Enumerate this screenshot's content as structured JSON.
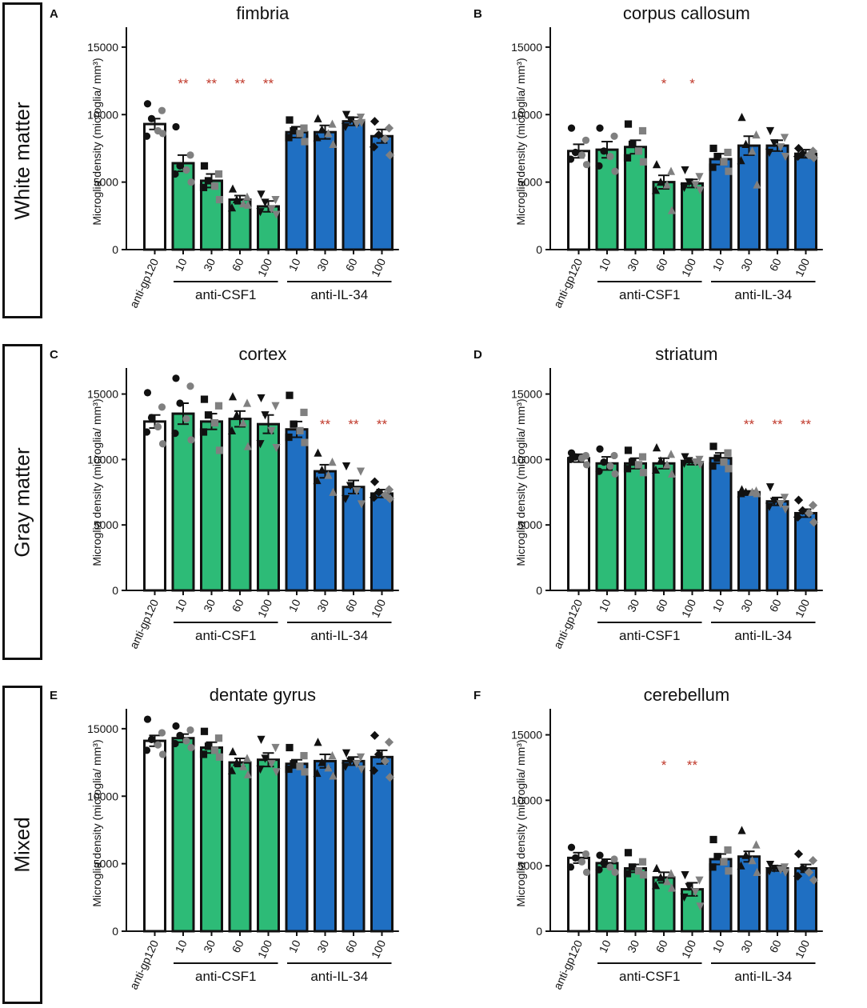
{
  "row_labels": [
    "White matter",
    "Gray matter",
    "Mixed"
  ],
  "colors": {
    "control": "#ffffff",
    "anti_csf1": "#2dbb77",
    "anti_il34": "#1f6fc2",
    "sig": "#c0392b",
    "dark_point": "#111111",
    "gray_point": "#808080"
  },
  "chart_data": [
    {
      "type": "bar",
      "panel": "A",
      "title": "fimbria",
      "ylabel": "Microglia density (microglia/ mm³)",
      "ylim": [
        0,
        16000
      ],
      "yticks": [
        0,
        5000,
        10000,
        15000
      ],
      "categories": [
        "anti-gp120",
        "10",
        "30",
        "60",
        "100",
        "10",
        "30",
        "60",
        "100"
      ],
      "groups": [
        {
          "label": "anti-CSF1",
          "from": 1,
          "to": 4
        },
        {
          "label": "anti-IL-34",
          "from": 5,
          "to": 8
        }
      ],
      "values": [
        9300,
        6400,
        5100,
        3700,
        3200,
        8700,
        8700,
        9500,
        8400
      ],
      "errors": [
        400,
        600,
        500,
        300,
        400,
        400,
        500,
        300,
        500
      ],
      "significance": [
        "",
        "**",
        "**",
        "**",
        "**",
        "",
        "",
        "",
        ""
      ],
      "points": [
        [
          10800,
          10300,
          9700,
          8800,
          8400,
          8600
        ],
        [
          9100,
          7000,
          6200,
          5900,
          5600,
          5000
        ],
        [
          6200,
          5600,
          5100,
          4700,
          4600,
          3700
        ],
        [
          4500,
          3900,
          3700,
          3400,
          3100,
          3300
        ],
        [
          4100,
          3700,
          3500,
          3000,
          2800,
          2600
        ],
        [
          9600,
          9000,
          8800,
          8600,
          8300,
          8000
        ],
        [
          9700,
          9300,
          8900,
          8600,
          8300,
          7800
        ],
        [
          10000,
          9800,
          9600,
          9300,
          9100,
          9400
        ],
        [
          9500,
          9000,
          8500,
          8200,
          7600,
          7000
        ]
      ]
    },
    {
      "type": "bar",
      "panel": "B",
      "title": "corpus callosum",
      "ylabel": "Microglia density (microglia/ mm³)",
      "ylim": [
        0,
        16000
      ],
      "yticks": [
        0,
        5000,
        10000,
        15000
      ],
      "categories": [
        "anti-gp120",
        "10",
        "30",
        "60",
        "100",
        "10",
        "30",
        "60",
        "100"
      ],
      "groups": [
        {
          "label": "anti-CSF1",
          "from": 1,
          "to": 4
        },
        {
          "label": "anti-IL-34",
          "from": 5,
          "to": 8
        }
      ],
      "values": [
        7300,
        7400,
        7600,
        5000,
        4900,
        6700,
        7700,
        7700,
        7100
      ],
      "errors": [
        500,
        600,
        500,
        500,
        300,
        400,
        700,
        400,
        300
      ],
      "significance": [
        "",
        "",
        "",
        "*",
        "*",
        "",
        "",
        "",
        ""
      ],
      "points": [
        [
          9000,
          8100,
          7200,
          7000,
          6700,
          6300
        ],
        [
          9000,
          8400,
          7300,
          6900,
          6200,
          5800
        ],
        [
          9300,
          8800,
          7800,
          7300,
          6800,
          6500
        ],
        [
          6300,
          5800,
          5000,
          4800,
          4400,
          2900
        ],
        [
          5900,
          5400,
          5000,
          4800,
          4600,
          4400
        ],
        [
          7500,
          7200,
          6900,
          6500,
          6100,
          5800
        ],
        [
          9800,
          8500,
          7800,
          7300,
          6600,
          4800
        ],
        [
          8800,
          8300,
          7900,
          7600,
          7200,
          6900
        ],
        [
          7500,
          7300,
          7100,
          7000,
          6900,
          6800
        ]
      ]
    },
    {
      "type": "bar",
      "panel": "C",
      "title": "cortex",
      "ylabel": "Microglia density (microglia/ mm³)",
      "ylim": [
        0,
        16500
      ],
      "yticks": [
        0,
        5000,
        10000,
        15000
      ],
      "categories": [
        "anti-gp120",
        "10",
        "30",
        "60",
        "100",
        "10",
        "30",
        "60",
        "100"
      ],
      "groups": [
        {
          "label": "anti-CSF1",
          "from": 1,
          "to": 4
        },
        {
          "label": "anti-IL-34",
          "from": 5,
          "to": 8
        }
      ],
      "values": [
        12900,
        13500,
        12900,
        13100,
        12700,
        12300,
        9100,
        7900,
        7400
      ],
      "errors": [
        500,
        800,
        600,
        600,
        700,
        600,
        500,
        500,
        300
      ],
      "significance": [
        "",
        "",
        "",
        "",
        "",
        "",
        "**",
        "**",
        "**"
      ],
      "points": [
        [
          15100,
          14000,
          13200,
          12500,
          12100,
          11200
        ],
        [
          16200,
          15600,
          14300,
          13100,
          12000,
          11500
        ],
        [
          14600,
          14100,
          13400,
          12800,
          12100,
          10700
        ],
        [
          14800,
          14300,
          13400,
          12800,
          12200,
          11000
        ],
        [
          14700,
          14100,
          13400,
          12200,
          11200,
          10900
        ],
        [
          14900,
          13600,
          12700,
          12200,
          11700,
          11300
        ],
        [
          10500,
          9800,
          9200,
          8800,
          8400,
          7500
        ],
        [
          9500,
          9100,
          8000,
          7600,
          7000,
          6600
        ],
        [
          8300,
          7700,
          7500,
          7300,
          7100,
          7000
        ]
      ]
    },
    {
      "type": "bar",
      "panel": "D",
      "title": "striatum",
      "ylabel": "Microglia density (microglia/ mm³)",
      "ylim": [
        0,
        16500
      ],
      "yticks": [
        0,
        5000,
        10000,
        15000
      ],
      "categories": [
        "anti-gp120",
        "10",
        "30",
        "60",
        "100",
        "10",
        "30",
        "60",
        "100"
      ],
      "groups": [
        {
          "label": "anti-CSF1",
          "from": 1,
          "to": 4
        },
        {
          "label": "anti-IL-34",
          "from": 5,
          "to": 8
        }
      ],
      "values": [
        10100,
        9700,
        9700,
        9700,
        9800,
        10100,
        7500,
        6800,
        5900
      ],
      "errors": [
        300,
        500,
        400,
        400,
        200,
        400,
        100,
        300,
        300
      ],
      "significance": [
        "",
        "",
        "",
        "",
        "",
        "",
        "**",
        "**",
        "**"
      ],
      "points": [
        [
          10500,
          10300,
          10200,
          10100,
          10000,
          9600
        ],
        [
          10800,
          10300,
          9800,
          9500,
          9100,
          8900
        ],
        [
          10700,
          10200,
          9800,
          9600,
          9300,
          9000
        ],
        [
          10900,
          10400,
          9900,
          9600,
          9200,
          8900
        ],
        [
          10200,
          10000,
          9900,
          9800,
          9700,
          9600
        ],
        [
          11000,
          10500,
          10100,
          9800,
          9500,
          9300
        ],
        [
          7700,
          7600,
          7500,
          7500,
          7400,
          7400
        ],
        [
          7900,
          7100,
          6800,
          6600,
          6400,
          6200
        ],
        [
          6900,
          6500,
          6100,
          5900,
          5600,
          5200
        ]
      ]
    },
    {
      "type": "bar",
      "panel": "E",
      "title": "dentate gyrus",
      "ylabel": "Microglia density (microglia/ mm³)",
      "ylim": [
        0,
        16000
      ],
      "yticks": [
        0,
        5000,
        10000,
        15000
      ],
      "categories": [
        "anti-gp120",
        "10",
        "30",
        "60",
        "100",
        "10",
        "30",
        "60",
        "100"
      ],
      "groups": [
        {
          "label": "anti-CSF1",
          "from": 1,
          "to": 4
        },
        {
          "label": "anti-IL-34",
          "from": 5,
          "to": 8
        }
      ],
      "values": [
        14100,
        14300,
        13600,
        12500,
        12700,
        12400,
        12600,
        12600,
        12900
      ],
      "errors": [
        400,
        300,
        400,
        300,
        500,
        300,
        500,
        300,
        500
      ],
      "significance": [
        "",
        "",
        "",
        "",
        "",
        "",
        "",
        "",
        ""
      ],
      "points": [
        [
          15700,
          14700,
          14200,
          13800,
          13400,
          13100
        ],
        [
          15200,
          14900,
          14500,
          14100,
          13900,
          13600
        ],
        [
          14800,
          14300,
          13700,
          13400,
          13100,
          12900
        ],
        [
          13300,
          12800,
          12500,
          12200,
          11900,
          11600
        ],
        [
          14200,
          13600,
          12800,
          12400,
          12000,
          11800
        ],
        [
          13600,
          13000,
          12400,
          12200,
          12000,
          11800
        ],
        [
          14000,
          13000,
          12500,
          12100,
          11700,
          11500
        ],
        [
          13200,
          12900,
          12600,
          12400,
          12200,
          12000
        ],
        [
          14500,
          14000,
          13100,
          12600,
          11900,
          11400
        ]
      ]
    },
    {
      "type": "bar",
      "panel": "F",
      "title": "cerebellum",
      "ylabel": "Microglia density (microglia/ mm³)",
      "ylim": [
        0,
        16500
      ],
      "yticks": [
        0,
        5000,
        10000,
        15000
      ],
      "categories": [
        "anti-gp120",
        "10",
        "30",
        "60",
        "100",
        "10",
        "30",
        "60",
        "100"
      ],
      "groups": [
        {
          "label": "anti-CSF1",
          "from": 1,
          "to": 4
        },
        {
          "label": "anti-IL-34",
          "from": 5,
          "to": 8
        }
      ],
      "values": [
        5600,
        5200,
        4800,
        4100,
        3200,
        5500,
        5700,
        4800,
        4800
      ],
      "errors": [
        400,
        300,
        300,
        400,
        500,
        400,
        400,
        200,
        300
      ],
      "significance": [
        "",
        "",
        "",
        "*",
        "**",
        "",
        "",
        "",
        ""
      ],
      "points": [
        [
          6400,
          5900,
          5600,
          5300,
          4900,
          4500
        ],
        [
          5800,
          5500,
          5200,
          4900,
          4700,
          4500
        ],
        [
          6000,
          5300,
          4900,
          4600,
          4400,
          4300
        ],
        [
          4800,
          4400,
          4100,
          3800,
          3500,
          3300
        ],
        [
          4300,
          3900,
          3400,
          3000,
          2600,
          1900
        ],
        [
          7000,
          6200,
          5700,
          5300,
          4900,
          4600
        ],
        [
          7700,
          6600,
          5800,
          5400,
          5000,
          4500
        ],
        [
          5100,
          4900,
          4800,
          4700,
          4600,
          4500
        ],
        [
          5900,
          5400,
          4800,
          4500,
          4200,
          3900
        ]
      ]
    }
  ]
}
